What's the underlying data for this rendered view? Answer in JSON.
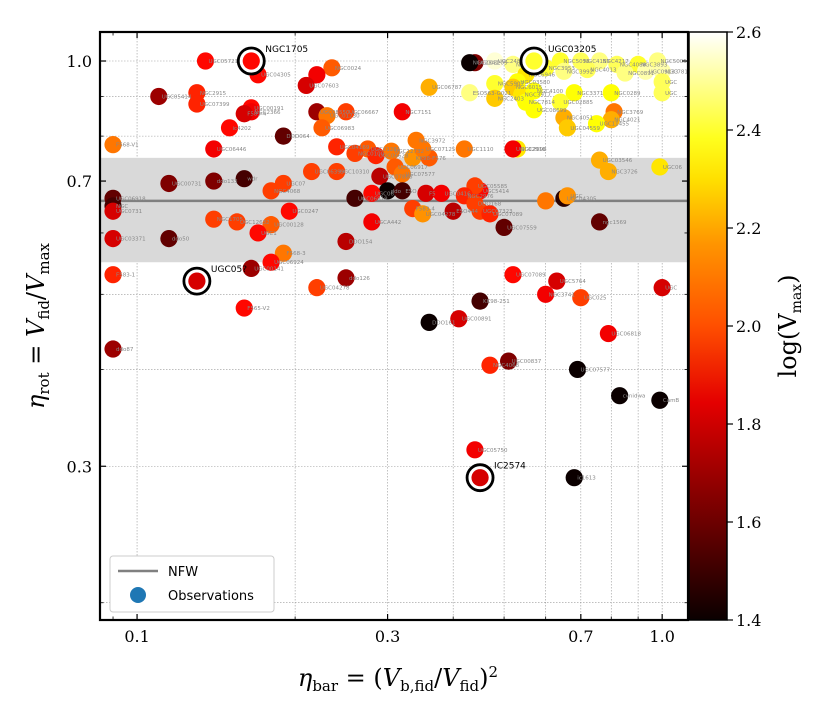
{
  "chart_data": {
    "type": "scatter",
    "xlabel": "η_bar = (V_b,fid / V_fid)²",
    "ylabel": "η_rot = V_fid / V_max",
    "xscale": "log",
    "yscale": "log",
    "xlim": [
      0.085,
      1.12
    ],
    "ylim": [
      0.19,
      1.09
    ],
    "xticks": [
      0.1,
      0.3,
      0.7,
      1.0
    ],
    "xtick_labels": [
      "0.1",
      "0.3",
      "0.7",
      "1.0"
    ],
    "yticks": [
      0.3,
      0.7,
      1.0
    ],
    "ytick_labels": [
      "0.3",
      "0.7",
      "1.0"
    ],
    "grid": true,
    "nfw": {
      "label": "NFW",
      "eta_rot": 0.66,
      "band": [
        0.55,
        0.75
      ],
      "color": "#808080"
    },
    "legend": {
      "position": "lower-left",
      "entries": [
        "NFW",
        "Observations"
      ],
      "observations_color": "#1f77b4"
    },
    "colorbar": {
      "label": "log(V_max)",
      "min": 1.4,
      "max": 2.6,
      "ticks": [
        1.4,
        1.6,
        1.8,
        2.0,
        2.2,
        2.4,
        2.6
      ],
      "tick_labels": [
        "1.4",
        "1.6",
        "1.8",
        "2.0",
        "2.2",
        "2.4",
        "2.6"
      ],
      "colormap": "hot"
    },
    "highlighted": [
      {
        "name": "NGC1705",
        "x": 0.165,
        "y": 1.0,
        "c": 1.85
      },
      {
        "name": "UGC03205",
        "x": 0.57,
        "y": 1.0,
        "c": 2.35
      },
      {
        "name": "UGC05?",
        "x": 0.13,
        "y": 0.52,
        "c": 1.75
      },
      {
        "name": "IC2574",
        "x": 0.45,
        "y": 0.29,
        "c": 1.75
      }
    ],
    "points": [
      {
        "name": "UGC05721",
        "x": 0.135,
        "y": 1.0,
        "c": 1.85
      },
      {
        "name": "NGC0024",
        "x": 0.235,
        "y": 0.98,
        "c": 2.0
      },
      {
        "name": "UGC04305",
        "x": 0.17,
        "y": 0.96,
        "c": 1.85
      },
      {
        "name": "",
        "x": 0.22,
        "y": 0.96,
        "c": 1.8
      },
      {
        "name": "UGC07603",
        "x": 0.21,
        "y": 0.93,
        "c": 1.75
      },
      {
        "name": "NGC2915",
        "x": 0.13,
        "y": 0.91,
        "c": 1.9
      },
      {
        "name": "UGC05414",
        "x": 0.11,
        "y": 0.9,
        "c": 1.65
      },
      {
        "name": "UGC07399",
        "x": 0.13,
        "y": 0.88,
        "c": 1.9
      },
      {
        "name": "UGC00191",
        "x": 0.165,
        "y": 0.87,
        "c": 1.85
      },
      {
        "name": "NGC2366",
        "x": 0.165,
        "y": 0.86,
        "c": 1.8
      },
      {
        "name": "F583-4",
        "x": 0.16,
        "y": 0.855,
        "c": 1.75
      },
      {
        "name": "UGC08550",
        "x": 0.22,
        "y": 0.86,
        "c": 1.65
      },
      {
        "name": "UGC01230",
        "x": 0.23,
        "y": 0.85,
        "c": 2.05
      },
      {
        "name": "UGC06983",
        "x": 0.225,
        "y": 0.82,
        "c": 2.0
      },
      {
        "name": "UGC06667",
        "x": 0.25,
        "y": 0.86,
        "c": 1.95
      },
      {
        "name": "NGC7151",
        "x": 0.32,
        "y": 0.86,
        "c": 1.8
      },
      {
        "name": "ic4202",
        "x": 0.15,
        "y": 0.82,
        "c": 1.85
      },
      {
        "name": "F568-V1",
        "x": 0.09,
        "y": 0.78,
        "c": 2.05
      },
      {
        "name": "DDO064",
        "x": 0.19,
        "y": 0.8,
        "c": 1.55
      },
      {
        "name": "UGC06446",
        "x": 0.14,
        "y": 0.77,
        "c": 1.8
      },
      {
        "name": "UGC04169",
        "x": 0.24,
        "y": 0.775,
        "c": 1.9
      },
      {
        "name": "NGC3972",
        "x": 0.34,
        "y": 0.79,
        "c": 2.05
      },
      {
        "name": "UGC12732",
        "x": 0.305,
        "y": 0.765,
        "c": 2.05
      },
      {
        "name": "UGC01281",
        "x": 0.275,
        "y": 0.77,
        "c": 2.0
      },
      {
        "name": "NGC0100",
        "x": 0.26,
        "y": 0.76,
        "c": 1.95
      },
      {
        "name": "UGC06628",
        "x": 0.285,
        "y": 0.755,
        "c": 1.9
      },
      {
        "name": "KK98-",
        "x": 0.335,
        "y": 0.75,
        "c": 2.1
      },
      {
        "name": "F576",
        "x": 0.36,
        "y": 0.75,
        "c": 2.0
      },
      {
        "name": "UGC00731",
        "x": 0.115,
        "y": 0.695,
        "c": 1.6
      },
      {
        "name": "ddo133",
        "x": 0.14,
        "y": 0.7,
        "c": 1.6
      },
      {
        "name": "UGC06399",
        "x": 0.215,
        "y": 0.72,
        "c": 1.95
      },
      {
        "name": "UGC10310",
        "x": 0.24,
        "y": 0.72,
        "c": 1.95
      },
      {
        "name": "UGC07866",
        "x": 0.29,
        "y": 0.71,
        "c": 1.7
      },
      {
        "name": "UGC06917",
        "x": 0.31,
        "y": 0.73,
        "c": 2.0
      },
      {
        "name": "UGC07577",
        "x": 0.32,
        "y": 0.715,
        "c": 2.05
      },
      {
        "name": "wdr",
        "x": 0.16,
        "y": 0.705,
        "c": 1.5
      },
      {
        "name": "UGC07",
        "x": 0.19,
        "y": 0.695,
        "c": 1.95
      },
      {
        "name": "NGC4068",
        "x": 0.18,
        "y": 0.68,
        "c": 1.95
      },
      {
        "name": "ddo",
        "x": 0.3,
        "y": 0.68,
        "c": 1.4
      },
      {
        "name": "ESO",
        "x": 0.32,
        "y": 0.68,
        "c": 1.5
      },
      {
        "name": "F5",
        "x": 0.355,
        "y": 0.675,
        "c": 1.75
      },
      {
        "name": "UGC5414",
        "x": 0.45,
        "y": 0.68,
        "c": 1.85
      },
      {
        "name": "UGC05585",
        "x": 0.44,
        "y": 0.69,
        "c": 1.95
      },
      {
        "name": "UGC06818",
        "x": 0.26,
        "y": 0.665,
        "c": 1.5
      },
      {
        "name": "UGC06",
        "x": 0.28,
        "y": 0.675,
        "c": 1.85
      },
      {
        "name": "UGC0416",
        "x": 0.38,
        "y": 0.675,
        "c": 1.8
      },
      {
        "name": "NGC2976",
        "x": 0.42,
        "y": 0.67,
        "c": 1.9
      },
      {
        "name": "DDO168",
        "x": 0.44,
        "y": 0.655,
        "c": 1.95
      },
      {
        "name": "UGC07323",
        "x": 0.45,
        "y": 0.64,
        "c": 1.95
      },
      {
        "name": "UGC06918",
        "x": 0.09,
        "y": 0.665,
        "c": 1.55
      },
      {
        "name": "NGC",
        "x": 0.09,
        "y": 0.65,
        "c": 1.5
      },
      {
        "name": "UGC0731",
        "x": 0.09,
        "y": 0.64,
        "c": 1.75
      },
      {
        "name": "UGC04305",
        "x": 0.65,
        "y": 0.665,
        "c": 1.45
      },
      {
        "name": "",
        "x": 0.6,
        "y": 0.66,
        "c": 2.05
      },
      {
        "name": "UGC",
        "x": 0.66,
        "y": 0.67,
        "c": 2.1
      },
      {
        "name": "F583-4",
        "x": 0.335,
        "y": 0.645,
        "c": 1.95
      },
      {
        "name": "UGC04278",
        "x": 0.35,
        "y": 0.635,
        "c": 2.1
      },
      {
        "name": "UGC0247",
        "x": 0.195,
        "y": 0.64,
        "c": 1.85
      },
      {
        "name": "NGC1705",
        "x": 0.14,
        "y": 0.625,
        "c": 1.95
      },
      {
        "name": "UGC12632",
        "x": 0.155,
        "y": 0.62,
        "c": 1.95
      },
      {
        "name": "ESO444",
        "x": 0.4,
        "y": 0.64,
        "c": 1.7
      },
      {
        "name": "UGC00128",
        "x": 0.18,
        "y": 0.615,
        "c": 2.0
      },
      {
        "name": "UGCA442",
        "x": 0.28,
        "y": 0.62,
        "c": 1.8
      },
      {
        "name": "UGC07559",
        "x": 0.5,
        "y": 0.61,
        "c": 1.55
      },
      {
        "name": "UGC07089",
        "x": 0.47,
        "y": 0.635,
        "c": 1.9
      },
      {
        "name": "ngc1569",
        "x": 0.76,
        "y": 0.62,
        "c": 1.55
      },
      {
        "name": "UGC03371",
        "x": 0.09,
        "y": 0.59,
        "c": 1.75
      },
      {
        "name": "ddo50",
        "x": 0.115,
        "y": 0.59,
        "c": 1.55
      },
      {
        "name": "UGC1",
        "x": 0.17,
        "y": 0.6,
        "c": 1.85
      },
      {
        "name": "DDO154",
        "x": 0.25,
        "y": 0.585,
        "c": 1.7
      },
      {
        "name": "F568-3",
        "x": 0.19,
        "y": 0.565,
        "c": 2.05
      },
      {
        "name": "UGC06924",
        "x": 0.18,
        "y": 0.55,
        "c": 1.85
      },
      {
        "name": "UGC00141",
        "x": 0.165,
        "y": 0.54,
        "c": 1.65
      },
      {
        "name": "F583-1",
        "x": 0.09,
        "y": 0.53,
        "c": 1.9
      },
      {
        "name": "ddo126",
        "x": 0.25,
        "y": 0.525,
        "c": 1.65
      },
      {
        "name": "UGC04278",
        "x": 0.22,
        "y": 0.51,
        "c": 1.95
      },
      {
        "name": "UGC07089",
        "x": 0.52,
        "y": 0.53,
        "c": 1.85
      },
      {
        "name": "UGC5764",
        "x": 0.63,
        "y": 0.52,
        "c": 1.75
      },
      {
        "name": "NGC3741",
        "x": 0.6,
        "y": 0.5,
        "c": 1.8
      },
      {
        "name": "UGC025",
        "x": 0.7,
        "y": 0.495,
        "c": 1.95
      },
      {
        "name": "UGC",
        "x": 1.0,
        "y": 0.51,
        "c": 1.75
      },
      {
        "name": "F565-V2",
        "x": 0.16,
        "y": 0.48,
        "c": 1.85
      },
      {
        "name": "KK98-251",
        "x": 0.45,
        "y": 0.49,
        "c": 1.5
      },
      {
        "name": "DDO161",
        "x": 0.36,
        "y": 0.46,
        "c": 1.4
      },
      {
        "name": "UGC00891",
        "x": 0.41,
        "y": 0.465,
        "c": 1.75
      },
      {
        "name": "UGC06818",
        "x": 0.79,
        "y": 0.445,
        "c": 1.8
      },
      {
        "name": "ddo87",
        "x": 0.09,
        "y": 0.425,
        "c": 1.65
      },
      {
        "name": "UGC00837",
        "x": 0.51,
        "y": 0.41,
        "c": 1.6
      },
      {
        "name": "NGC4068",
        "x": 0.47,
        "y": 0.405,
        "c": 1.9
      },
      {
        "name": "UGC07577",
        "x": 0.69,
        "y": 0.4,
        "c": 1.4
      },
      {
        "name": "cvnidwa",
        "x": 0.83,
        "y": 0.37,
        "c": 1.4
      },
      {
        "name": "CamB",
        "x": 0.99,
        "y": 0.365,
        "c": 1.4
      },
      {
        "name": "UGC05750",
        "x": 0.44,
        "y": 0.315,
        "c": 1.8
      },
      {
        "name": "ic1613",
        "x": 0.68,
        "y": 0.29,
        "c": 1.4
      },
      {
        "name": "UGC03205",
        "x": 0.44,
        "y": 0.995,
        "c": 1.6
      },
      {
        "name": "NGC2841",
        "x": 0.43,
        "y": 0.995,
        "c": 1.4
      },
      {
        "name": "NGC2841",
        "x": 0.52,
        "y": 0.99,
        "c": 2.45
      },
      {
        "name": "UGC2487",
        "x": 0.48,
        "y": 1.0,
        "c": 2.55
      },
      {
        "name": "NGC5055",
        "x": 0.64,
        "y": 1.0,
        "c": 2.35
      },
      {
        "name": "NGC4157",
        "x": 0.7,
        "y": 1.0,
        "c": 2.4
      },
      {
        "name": "NGC4217",
        "x": 0.76,
        "y": 1.0,
        "c": 2.45
      },
      {
        "name": "NGC4088",
        "x": 0.82,
        "y": 0.99,
        "c": 2.4
      },
      {
        "name": "NGC3893",
        "x": 0.9,
        "y": 0.99,
        "c": 2.35
      },
      {
        "name": "NGC5005",
        "x": 0.98,
        "y": 1.0,
        "c": 2.45
      },
      {
        "name": "NGC7814",
        "x": 1.0,
        "y": 0.97,
        "c": 2.5
      },
      {
        "name": "NGC3953",
        "x": 0.6,
        "y": 0.98,
        "c": 2.35
      },
      {
        "name": "NGC3992",
        "x": 0.65,
        "y": 0.97,
        "c": 2.45
      },
      {
        "name": "NGC4013",
        "x": 0.72,
        "y": 0.975,
        "c": 2.4
      },
      {
        "name": "NGC0891",
        "x": 0.85,
        "y": 0.965,
        "c": 2.45
      },
      {
        "name": "UGC09133",
        "x": 0.93,
        "y": 0.97,
        "c": 2.5
      },
      {
        "name": "NGC6946",
        "x": 0.55,
        "y": 0.96,
        "c": 2.25
      },
      {
        "name": "UGC",
        "x": 1.0,
        "y": 0.94,
        "c": 2.4
      },
      {
        "name": "UGC03580",
        "x": 0.53,
        "y": 0.94,
        "c": 2.3
      },
      {
        "name": "NGC5907",
        "x": 0.48,
        "y": 0.935,
        "c": 2.35
      },
      {
        "name": "NGC6015",
        "x": 0.52,
        "y": 0.925,
        "c": 2.2
      },
      {
        "name": "NGC3917",
        "x": 0.54,
        "y": 0.905,
        "c": 2.25
      },
      {
        "name": "NGC4100",
        "x": 0.57,
        "y": 0.915,
        "c": 2.3
      },
      {
        "name": "NGC2403",
        "x": 0.48,
        "y": 0.895,
        "c": 2.2
      },
      {
        "name": "ESO563-G021",
        "x": 0.43,
        "y": 0.91,
        "c": 2.45
      },
      {
        "name": "UGC06787",
        "x": 0.36,
        "y": 0.925,
        "c": 2.15
      },
      {
        "name": "NGC3371",
        "x": 0.68,
        "y": 0.91,
        "c": 2.3
      },
      {
        "name": "NGC0289",
        "x": 0.8,
        "y": 0.91,
        "c": 2.3
      },
      {
        "name": "UGC",
        "x": 1.0,
        "y": 0.91,
        "c": 2.4
      },
      {
        "name": "NGC7814",
        "x": 0.55,
        "y": 0.885,
        "c": 2.3
      },
      {
        "name": "UGC08699",
        "x": 0.57,
        "y": 0.865,
        "c": 2.3
      },
      {
        "name": "UGC02885",
        "x": 0.64,
        "y": 0.885,
        "c": 2.35
      },
      {
        "name": "NGC3769",
        "x": 0.81,
        "y": 0.86,
        "c": 2.05
      },
      {
        "name": "NGC4051",
        "x": 0.65,
        "y": 0.845,
        "c": 2.15
      },
      {
        "name": "NGC4021",
        "x": 0.8,
        "y": 0.84,
        "c": 2.15
      },
      {
        "name": "UGC04559",
        "x": 0.66,
        "y": 0.82,
        "c": 2.2
      },
      {
        "name": "UGC11455",
        "x": 0.75,
        "y": 0.83,
        "c": 2.3
      },
      {
        "name": "NGC2998",
        "x": 0.53,
        "y": 0.77,
        "c": 2.25
      },
      {
        "name": "UGC02916",
        "x": 0.52,
        "y": 0.77,
        "c": 1.8
      },
      {
        "name": "UGC03546",
        "x": 0.76,
        "y": 0.745,
        "c": 2.15
      },
      {
        "name": "NGC3726",
        "x": 0.79,
        "y": 0.72,
        "c": 2.15
      },
      {
        "name": "UGC06",
        "x": 0.99,
        "y": 0.73,
        "c": 2.25
      },
      {
        "name": "UGC07125",
        "x": 0.35,
        "y": 0.77,
        "c": 2.05
      },
      {
        "name": "UGC1110",
        "x": 0.42,
        "y": 0.77,
        "c": 2.05
      }
    ]
  }
}
